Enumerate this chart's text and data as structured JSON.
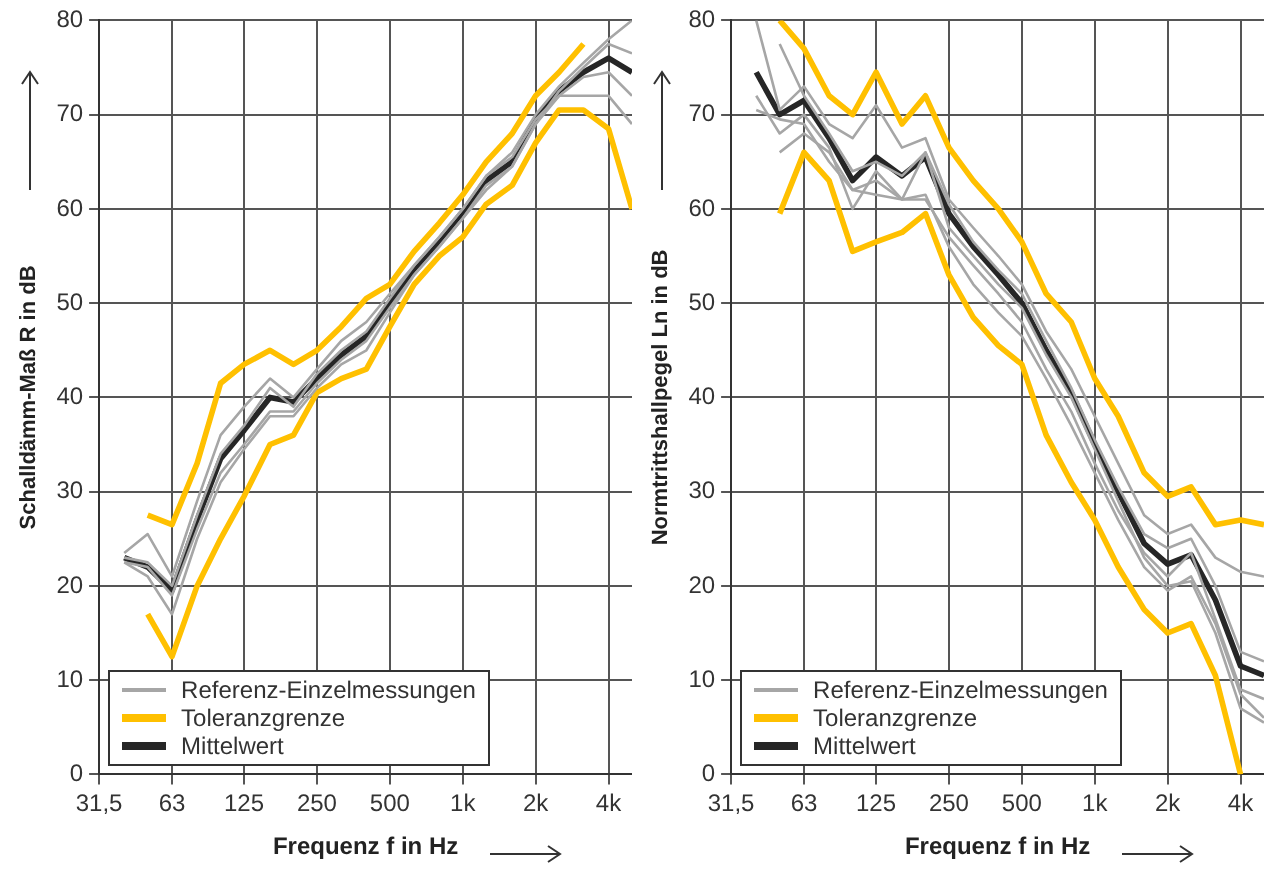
{
  "chart_data": [
    {
      "type": "line",
      "xlabel": "Frequenz f in Hz",
      "ylabel": "Schalldämm-Maß R in dB",
      "log": "x",
      "grid": true,
      "legend": "bottom left",
      "x": [
        40,
        50,
        63,
        80,
        100,
        125,
        160,
        200,
        250,
        315,
        400,
        500,
        630,
        800,
        1000,
        1250,
        1600,
        2000,
        2500,
        3150,
        4000,
        5000
      ],
      "xlim": [
        31.5,
        5000
      ],
      "xticks": [
        {
          "value": 31.5,
          "label": "31,5"
        },
        63,
        125,
        250,
        500,
        {
          "value": 1000,
          "label": "1k"
        },
        {
          "value": 2000,
          "label": "2k"
        },
        {
          "value": 4000,
          "label": "4k"
        }
      ],
      "ylim": [
        0,
        80
      ],
      "yticks": [
        0,
        10,
        20,
        30,
        40,
        50,
        60,
        70,
        80
      ],
      "series": [
        {
          "name": "Referenz-Einzelmessungen",
          "color": "#a6a6a6",
          "values": [
            23.5,
            25.5,
            21,
            29,
            36,
            39,
            42,
            40,
            43,
            46,
            48,
            51,
            54,
            57,
            60,
            63.5,
            66,
            70,
            73,
            75.5,
            78,
            80
          ]
        },
        {
          "color": "#a6a6a6",
          "values": [
            22.5,
            21,
            17,
            25,
            31,
            34.5,
            38,
            38,
            41,
            43.5,
            45,
            49,
            53,
            56,
            59,
            62,
            64.5,
            69,
            72,
            74,
            74.5,
            72
          ]
        },
        {
          "color": "#a6a6a6",
          "values": [
            23,
            22.5,
            20,
            27.5,
            34,
            37,
            41,
            39,
            42.5,
            45,
            47,
            50.5,
            54,
            57,
            60,
            63.5,
            65.5,
            69.5,
            72,
            72,
            72,
            69
          ]
        },
        {
          "color": "#a6a6a6",
          "values": [
            22.5,
            22,
            19,
            26,
            32,
            35,
            38.5,
            38.5,
            41.5,
            44,
            46,
            49.5,
            53,
            56,
            59,
            62.5,
            64.5,
            69,
            72.5,
            75,
            77.5,
            76.5
          ]
        },
        {
          "name": "Toleranzgrenze",
          "color": "#ffc000",
          "values": [
            null,
            27.5,
            26.5,
            33,
            41.5,
            43.5,
            45,
            43.5,
            45,
            47.5,
            50.5,
            52,
            55.5,
            58.5,
            61.5,
            65,
            68,
            72,
            74.5,
            77.5,
            null,
            null
          ]
        },
        {
          "color": "#ffc000",
          "values": [
            null,
            17,
            12.5,
            20,
            25,
            29.5,
            35,
            36,
            40.5,
            42,
            43,
            47.5,
            52,
            55,
            57,
            60.5,
            62.5,
            67,
            70.5,
            70.5,
            68.5,
            60
          ]
        },
        {
          "name": "Mittelwert",
          "color": "#262626",
          "values": [
            23,
            22,
            19.5,
            27,
            33.5,
            36.5,
            40,
            39.5,
            42,
            44.5,
            46.5,
            50,
            53.5,
            56.5,
            59.5,
            63,
            65,
            69.5,
            72.5,
            74.5,
            76,
            74.5
          ]
        }
      ]
    },
    {
      "type": "line",
      "xlabel": "Frequenz f in Hz",
      "ylabel": "Normtrittshallpegel Ln in dB",
      "log": "x",
      "grid": true,
      "legend": "bottom left",
      "x": [
        40,
        50,
        63,
        80,
        100,
        125,
        160,
        200,
        250,
        315,
        400,
        500,
        630,
        800,
        1000,
        1250,
        1600,
        2000,
        2500,
        3150,
        4000,
        5000
      ],
      "xlim": [
        31.5,
        5000
      ],
      "xticks": [
        {
          "value": 31.5,
          "label": "31,5"
        },
        63,
        125,
        250,
        500,
        {
          "value": 1000,
          "label": "1k"
        },
        {
          "value": 2000,
          "label": "2k"
        },
        {
          "value": 4000,
          "label": "4k"
        }
      ],
      "ylim": [
        0,
        80
      ],
      "yticks": [
        0,
        10,
        20,
        30,
        40,
        50,
        60,
        70,
        80
      ],
      "series": [
        {
          "name": "Referenz-Einzelmessungen",
          "color": "#a6a6a6",
          "values": [
            80,
            70.5,
            73,
            69,
            67.5,
            71,
            66.5,
            67.5,
            61,
            58,
            55,
            52,
            47,
            43,
            38,
            33,
            27.5,
            25.5,
            26.5,
            23,
            21.5,
            21
          ]
        },
        {
          "color": "#a6a6a6",
          "values": [
            72,
            68,
            70,
            66.5,
            60,
            64,
            61,
            61,
            57,
            54,
            51,
            48,
            43,
            38.5,
            33,
            28,
            23.5,
            21,
            23.5,
            16.5,
            9,
            8
          ]
        },
        {
          "color": "#a6a6a6",
          "values": [
            70.5,
            69.5,
            69,
            65,
            62,
            63,
            61,
            66,
            58,
            55,
            52,
            49.5,
            44.5,
            40,
            34.5,
            29,
            23,
            20,
            20.5,
            15,
            7,
            5.5
          ]
        },
        {
          "color": "#a6a6a6",
          "values": [
            null,
            77.5,
            72,
            68,
            64,
            65,
            63.5,
            66,
            60.5,
            56.5,
            53.5,
            51,
            46,
            41,
            35.5,
            30.5,
            25.5,
            24,
            25,
            20,
            13,
            12
          ]
        },
        {
          "color": "#a6a6a6",
          "values": [
            null,
            66,
            68,
            66,
            62,
            61.5,
            61,
            61.5,
            56,
            52,
            49,
            46.5,
            42,
            37,
            32,
            27,
            22,
            19.5,
            21,
            16,
            8.5,
            6
          ]
        },
        {
          "name": "Toleranzgrenze",
          "color": "#ffc000",
          "values": [
            null,
            80,
            77,
            72,
            70,
            74.5,
            69,
            72,
            66.5,
            63,
            60,
            56.5,
            51,
            48,
            42,
            38,
            32,
            29.5,
            30.5,
            26.5,
            27,
            26.5
          ]
        },
        {
          "color": "#ffc000",
          "values": [
            null,
            59.5,
            66,
            63,
            55.5,
            56.5,
            57.5,
            59.5,
            53,
            48.5,
            45.5,
            43.5,
            36,
            31,
            27,
            22,
            17.5,
            15,
            16,
            10.5,
            0,
            null
          ]
        },
        {
          "name": "Mittelwert",
          "color": "#262626",
          "values": [
            74.5,
            70,
            71.5,
            67.5,
            63,
            65.5,
            63.5,
            65.5,
            59.5,
            56,
            53,
            50,
            45,
            40.5,
            35,
            30,
            24.5,
            22.3,
            23.3,
            18.5,
            11.5,
            10.5
          ]
        }
      ]
    }
  ]
}
